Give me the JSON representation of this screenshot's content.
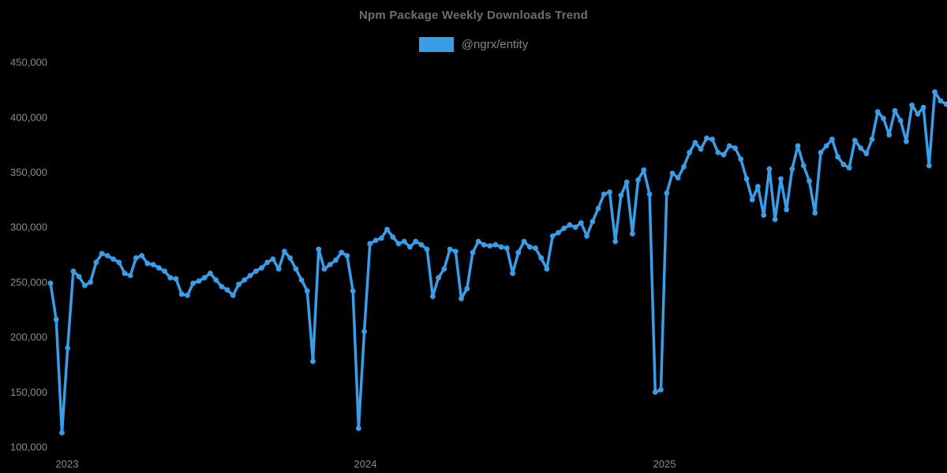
{
  "legend": {
    "label": "@ngrx/entity",
    "swatch_color": "#3a9de8"
  },
  "colors": {
    "background": "#000000",
    "series_blue": "#3a9de8",
    "title_gray": "#6e6e6e",
    "axis_label_gray": "#8a8a8a"
  },
  "chart_data": {
    "type": "line",
    "title": "Npm Package Weekly Downloads Trend",
    "xlabel": "",
    "ylabel": "",
    "legend_position": "top",
    "grid": false,
    "background": "#000000",
    "cadence": "weekly",
    "x_tick_labels": [
      "2023",
      "2024",
      "2025"
    ],
    "y_tick_labels": [
      "100,000",
      "150,000",
      "200,000",
      "250,000",
      "300,000",
      "350,000",
      "400,000",
      "450,000"
    ],
    "ylim": [
      100000,
      450000
    ],
    "series": [
      {
        "name": "@ngrx/entity",
        "color": "#3a9de8",
        "values": [
          249000,
          216000,
          113000,
          190000,
          260000,
          255000,
          247000,
          250000,
          268000,
          276000,
          274000,
          271000,
          268000,
          258000,
          256000,
          272000,
          274000,
          267000,
          266000,
          263000,
          260000,
          254000,
          253000,
          239000,
          238000,
          249000,
          251000,
          254000,
          258000,
          252000,
          246000,
          243000,
          238000,
          248000,
          252000,
          256000,
          260000,
          263000,
          268000,
          271000,
          262000,
          278000,
          272000,
          262000,
          252000,
          242000,
          178000,
          280000,
          262000,
          266000,
          270000,
          277000,
          274000,
          242000,
          117000,
          205000,
          285000,
          288000,
          290000,
          298000,
          291000,
          285000,
          287000,
          282000,
          287000,
          284000,
          280000,
          237000,
          254000,
          262000,
          280000,
          278000,
          235000,
          244000,
          277000,
          287000,
          284000,
          283000,
          284000,
          282000,
          281000,
          258000,
          277000,
          287000,
          282000,
          281000,
          272000,
          262000,
          292000,
          295000,
          299000,
          302000,
          300000,
          304000,
          292000,
          305000,
          317000,
          330000,
          332000,
          287000,
          329000,
          341000,
          294000,
          343000,
          352000,
          330000,
          150000,
          152000,
          331000,
          349000,
          345000,
          355000,
          368000,
          377000,
          371000,
          381000,
          380000,
          368000,
          366000,
          374000,
          372000,
          362000,
          344000,
          325000,
          337000,
          311000,
          353000,
          307000,
          344000,
          316000,
          353000,
          374000,
          356000,
          342000,
          313000,
          368000,
          374000,
          380000,
          364000,
          357000,
          354000,
          379000,
          372000,
          367000,
          380000,
          405000,
          399000,
          384000,
          406000,
          397000,
          378000,
          411000,
          403000,
          409000,
          356000,
          423000,
          415000,
          412000
        ]
      }
    ]
  }
}
